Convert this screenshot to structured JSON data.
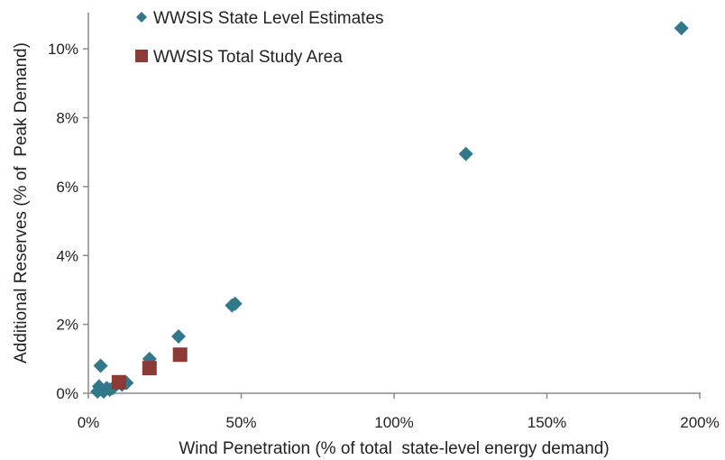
{
  "chart_data": {
    "type": "scatter",
    "xlabel": "Wind Penetration (% of total  state-level energy demand)",
    "ylabel": "Additional Reserves (% of  Peak Demand)",
    "xlim": [
      0,
      200
    ],
    "ylim": [
      0,
      11
    ],
    "x_ticks": [
      {
        "value": 0,
        "label": "0%"
      },
      {
        "value": 50,
        "label": "50%"
      },
      {
        "value": 100,
        "label": "100%"
      },
      {
        "value": 150,
        "label": "150%"
      },
      {
        "value": 200,
        "label": "200%"
      }
    ],
    "y_ticks": [
      {
        "value": 0,
        "label": "0%"
      },
      {
        "value": 2,
        "label": "2%"
      },
      {
        "value": 4,
        "label": "4%"
      },
      {
        "value": 6,
        "label": "6%"
      },
      {
        "value": 8,
        "label": "8%"
      },
      {
        "value": 10,
        "label": "10%"
      }
    ],
    "grid": false,
    "legend_position": "top-left",
    "series": [
      {
        "name": "WWSIS State Level Estimates",
        "marker": "diamond",
        "color": "#31788a",
        "points": [
          {
            "x": 3,
            "y": 0.05
          },
          {
            "x": 3.5,
            "y": 0.2
          },
          {
            "x": 4,
            "y": 0.8
          },
          {
            "x": 4.5,
            "y": 0.1
          },
          {
            "x": 5,
            "y": 0.05
          },
          {
            "x": 6,
            "y": 0.15
          },
          {
            "x": 7,
            "y": 0.1
          },
          {
            "x": 8,
            "y": 0.15
          },
          {
            "x": 11,
            "y": 0.25
          },
          {
            "x": 12.5,
            "y": 0.3
          },
          {
            "x": 20,
            "y": 1.0
          },
          {
            "x": 29.5,
            "y": 1.65
          },
          {
            "x": 47,
            "y": 2.55
          },
          {
            "x": 48,
            "y": 2.6
          },
          {
            "x": 123.5,
            "y": 6.95
          },
          {
            "x": 194,
            "y": 10.6
          }
        ]
      },
      {
        "name": "WWSIS Total Study Area",
        "marker": "square",
        "color": "#8b3a36",
        "points": [
          {
            "x": 10,
            "y": 0.32
          },
          {
            "x": 20,
            "y": 0.73
          },
          {
            "x": 30,
            "y": 1.12
          }
        ]
      }
    ]
  }
}
